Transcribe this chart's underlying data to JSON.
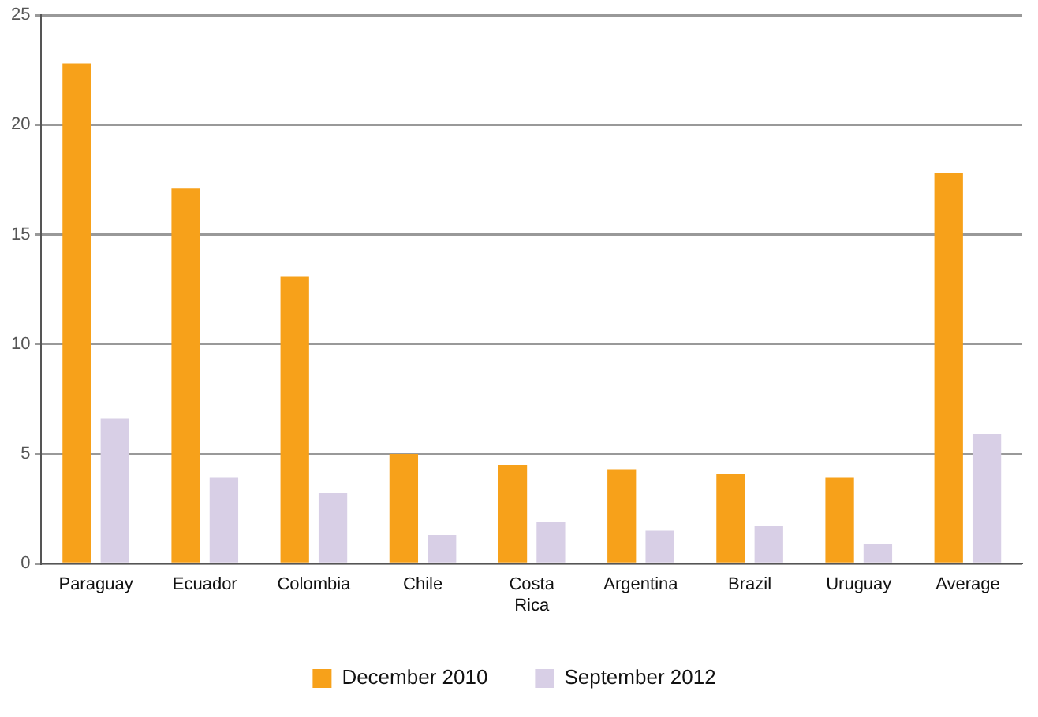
{
  "chart_data": {
    "type": "bar",
    "categories": [
      "Paraguay",
      "Ecuador",
      "Colombia",
      "Chile",
      "Costa Rica",
      "Argentina",
      "Brazil",
      "Uruguay",
      "Average"
    ],
    "series": [
      {
        "name": "December 2010",
        "color": "#f7a11a",
        "values": [
          22.8,
          17.1,
          13.1,
          5.0,
          4.5,
          4.3,
          4.1,
          3.9,
          17.8
        ]
      },
      {
        "name": "September 2012",
        "color": "#d8cfe6",
        "values": [
          6.6,
          3.9,
          3.2,
          1.3,
          1.9,
          1.5,
          1.7,
          0.9,
          5.9
        ]
      }
    ],
    "ylim": [
      0,
      25
    ],
    "yticks": [
      0,
      5,
      10,
      15,
      20,
      25
    ],
    "grid": "y",
    "legend": "bottom"
  }
}
